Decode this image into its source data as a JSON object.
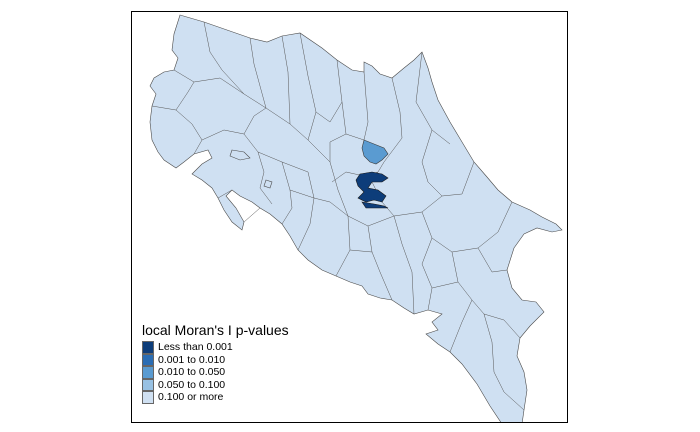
{
  "map": {
    "legend": {
      "title": "local Moran's I p-values",
      "items": [
        {
          "label": "Less than 0.001",
          "color": "#0d3d7a"
        },
        {
          "label": "0.001 to 0.010",
          "color": "#2a6db4"
        },
        {
          "label": "0.010 to 0.050",
          "color": "#5a9bd1"
        },
        {
          "label": "0.050 to 0.100",
          "color": "#98c1e3"
        },
        {
          "label": "0.100 or more",
          "color": "#cfe0f2"
        }
      ]
    }
  }
}
